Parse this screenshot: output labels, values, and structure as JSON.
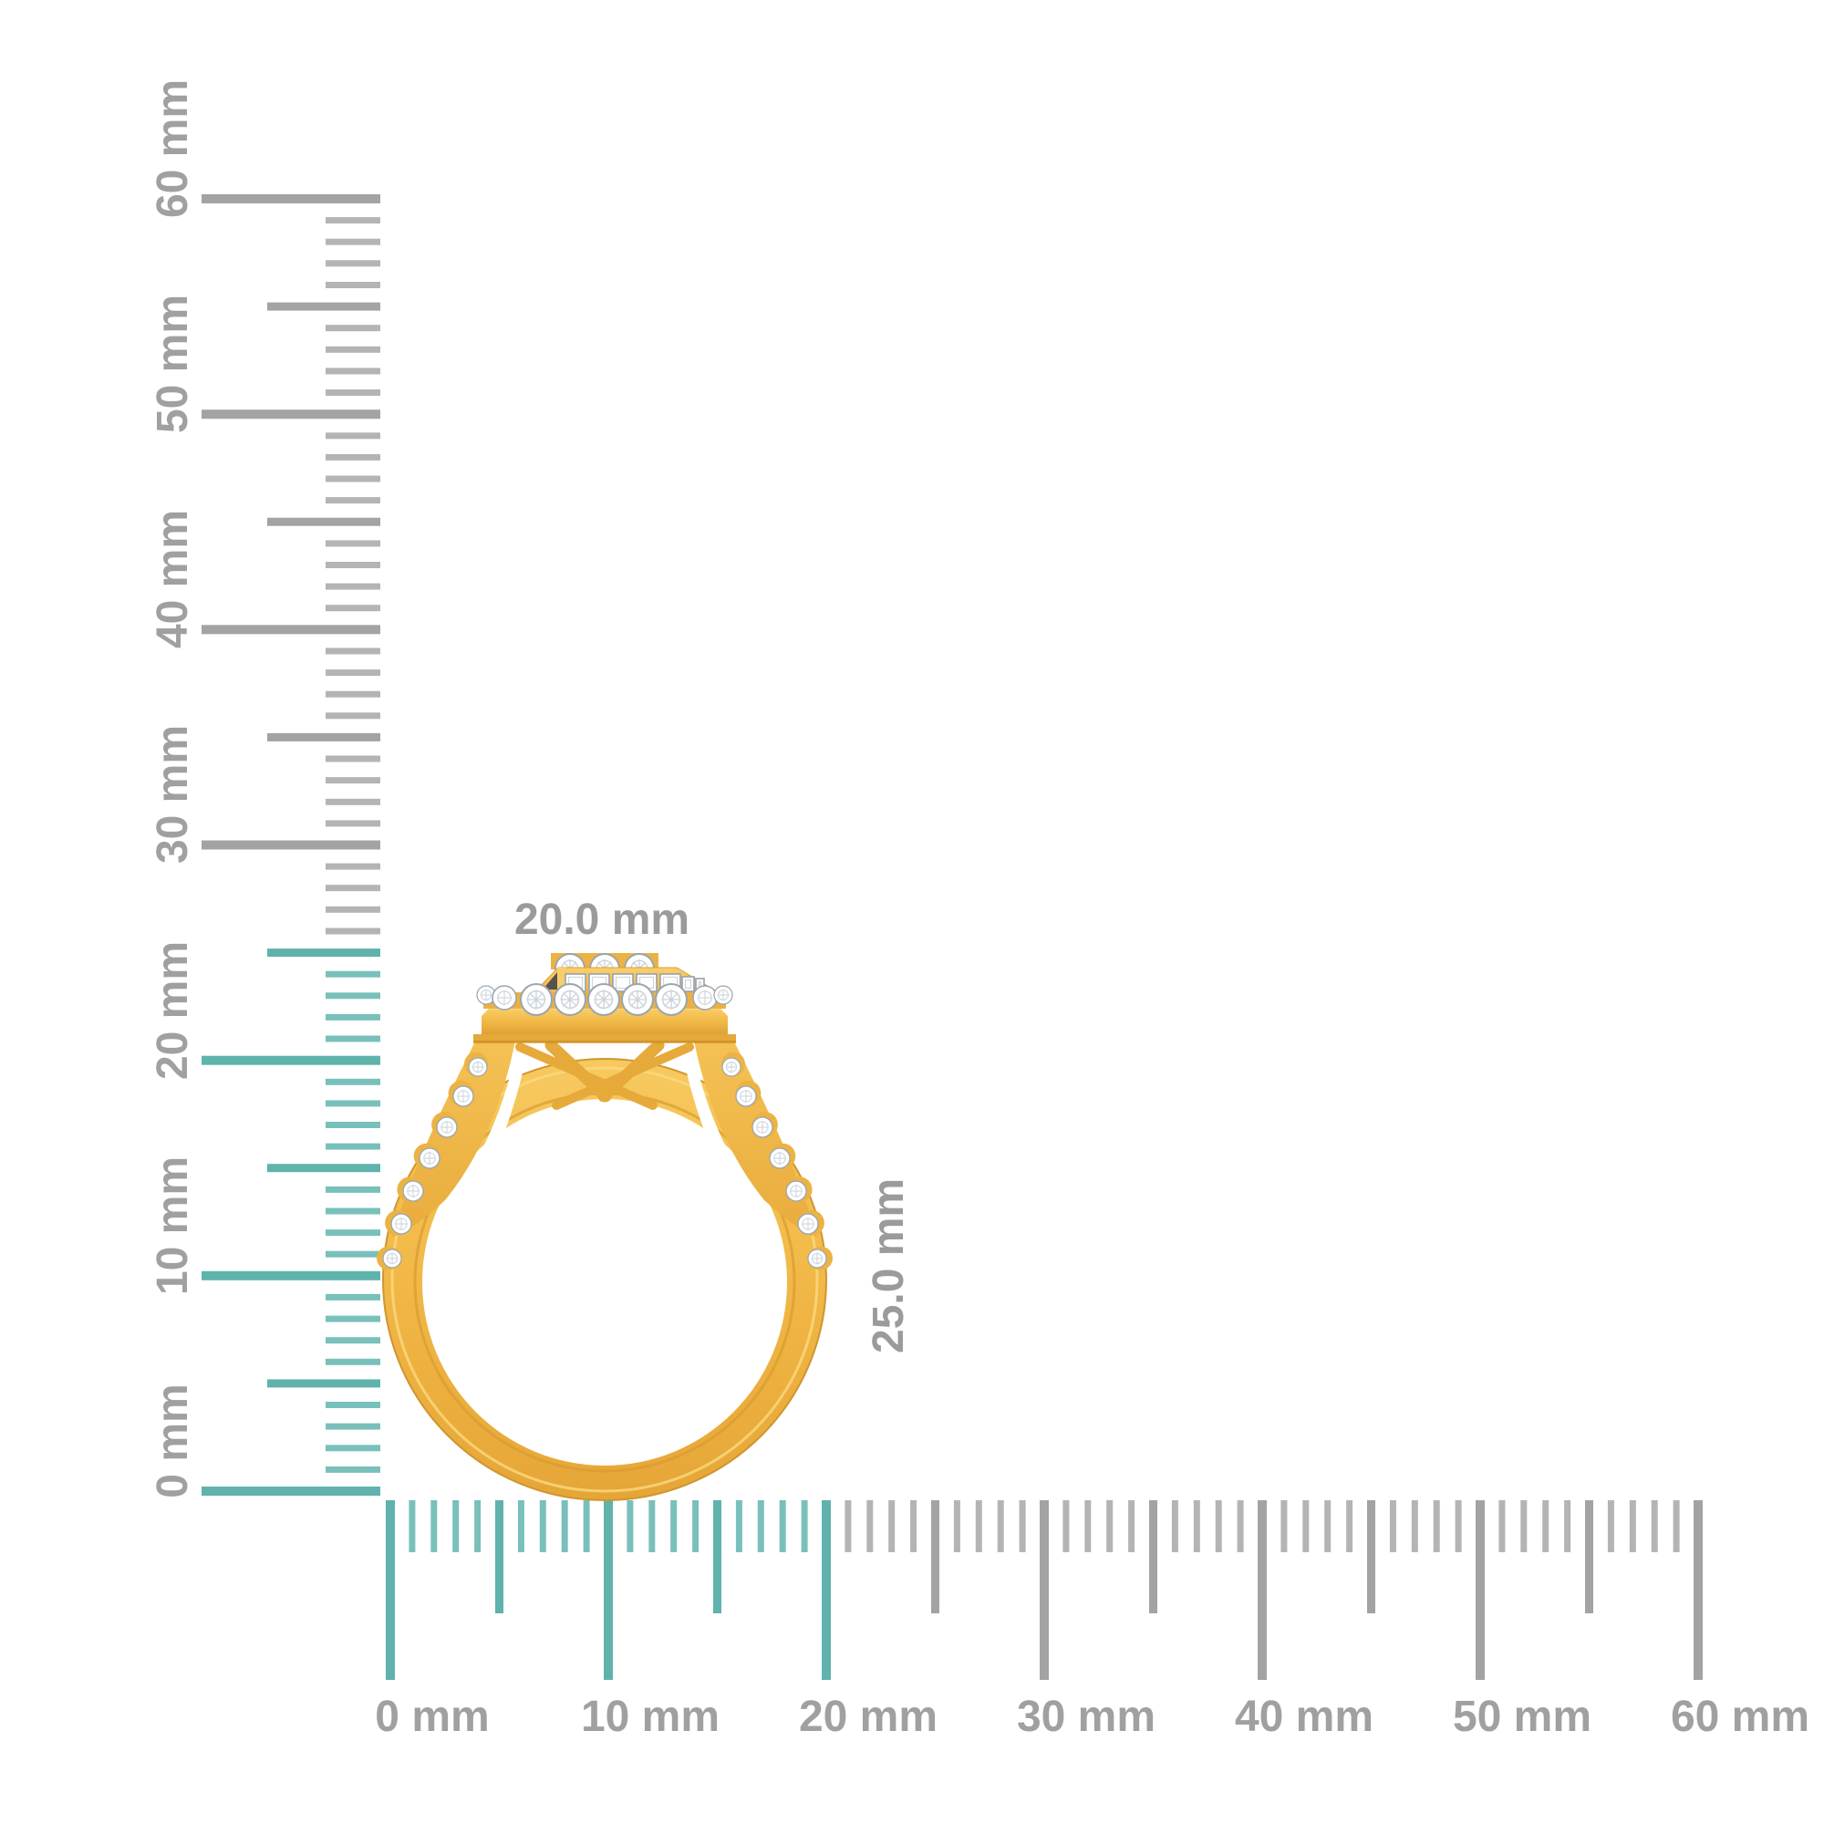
{
  "figure": {
    "description": "Gold halo diamond ring shown against corner millimeter rulers"
  },
  "ring": {
    "width_label": "20.0 mm",
    "height_label": "25.0 mm"
  },
  "vertical_ruler": {
    "unit": "mm",
    "min": 0,
    "max": 60,
    "major_step": 10,
    "mid_step": 5,
    "minor_step": 1,
    "highlight_up_to_mm": 25,
    "labels": [
      "0 mm",
      "10 mm",
      "20 mm",
      "30 mm",
      "40 mm",
      "50 mm",
      "60 mm"
    ]
  },
  "horizontal_ruler": {
    "unit": "mm",
    "min": 0,
    "max": 60,
    "major_step": 10,
    "mid_step": 5,
    "minor_step": 1,
    "highlight_up_to_mm": 20,
    "labels": [
      "0 mm",
      "10 mm",
      "20 mm",
      "30 mm",
      "40 mm",
      "50 mm",
      "60 mm"
    ]
  },
  "colors": {
    "background": "#FFFFFF",
    "teal_major": "#5FB3AC",
    "teal_minor": "#7AC0BA",
    "gray_major": "#A3A3A3",
    "gray_minor": "#B4B4B4",
    "label_gray": "#A0A0A0",
    "dimension_label_gray": "#9B9B9B",
    "gold": "#F3BC4E",
    "gold_light": "#FBE189",
    "gold_dark": "#D2992E",
    "diamond_stroke": "#9AA5AE",
    "diamond_facet": "#CBD3DA"
  }
}
